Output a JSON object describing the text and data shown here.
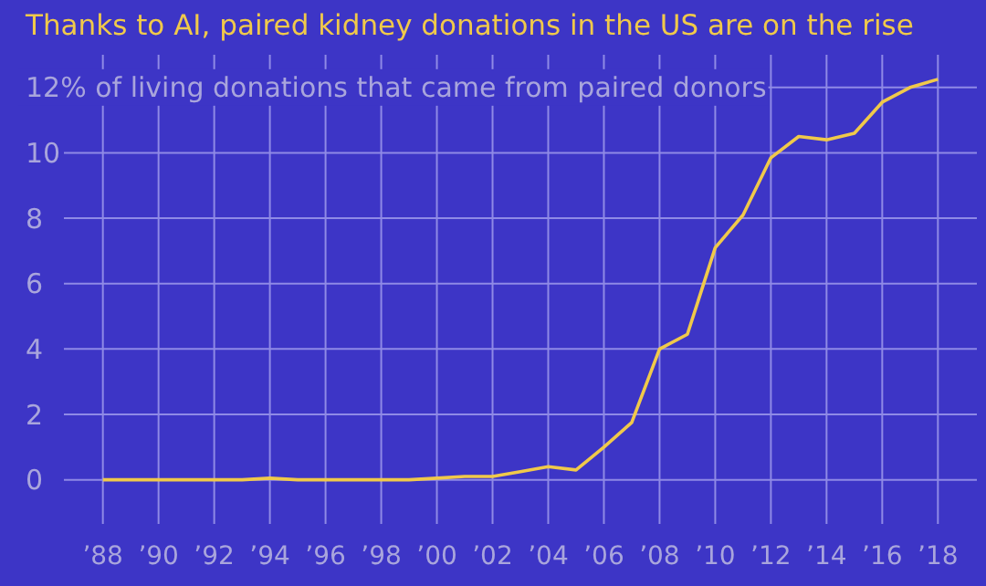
{
  "chart_data": {
    "type": "line",
    "title": "Thanks to AI, paired kidney donations in the US are on the rise",
    "x": [
      1988,
      1989,
      1990,
      1991,
      1992,
      1993,
      1994,
      1995,
      1996,
      1997,
      1998,
      1999,
      2000,
      2001,
      2002,
      2003,
      2004,
      2005,
      2006,
      2007,
      2008,
      2009,
      2010,
      2011,
      2012,
      2013,
      2014,
      2015,
      2016,
      2017,
      2018
    ],
    "series": [
      {
        "color": "#f0c94a",
        "values": [
          0,
          0,
          0,
          0,
          0,
          0,
          0.05,
          0,
          0,
          0,
          0,
          0,
          0.05,
          0.1,
          0.1,
          0.25,
          0.4,
          0.3,
          1.0,
          1.75,
          4.0,
          4.45,
          7.1,
          8.1,
          9.85,
          10.5,
          10.4,
          10.6,
          11.55,
          12.0,
          12.25
        ]
      }
    ],
    "xlim": [
      1986.6,
      2019.4
    ],
    "ylim": [
      -1.35,
      13
    ],
    "xticks": [
      {
        "value": 1988,
        "label": "’88"
      },
      {
        "value": 1990,
        "label": "’90"
      },
      {
        "value": 1992,
        "label": "’92"
      },
      {
        "value": 1994,
        "label": "’94"
      },
      {
        "value": 1996,
        "label": "’96"
      },
      {
        "value": 1998,
        "label": "’98"
      },
      {
        "value": 2000,
        "label": "’00"
      },
      {
        "value": 2002,
        "label": "’02"
      },
      {
        "value": 2004,
        "label": "’04"
      },
      {
        "value": 2006,
        "label": "’06"
      },
      {
        "value": 2008,
        "label": "’08"
      },
      {
        "value": 2010,
        "label": "’10"
      },
      {
        "value": 2012,
        "label": "’12"
      },
      {
        "value": 2014,
        "label": "’14"
      },
      {
        "value": 2016,
        "label": "’16"
      },
      {
        "value": 2018,
        "label": "’18"
      }
    ],
    "yticks": [
      0,
      2,
      4,
      6,
      8,
      10,
      {
        "value": 12,
        "label": "12% of living donations that came from paired donors"
      }
    ],
    "grid": true,
    "marker": "none",
    "line_style": "solid"
  }
}
